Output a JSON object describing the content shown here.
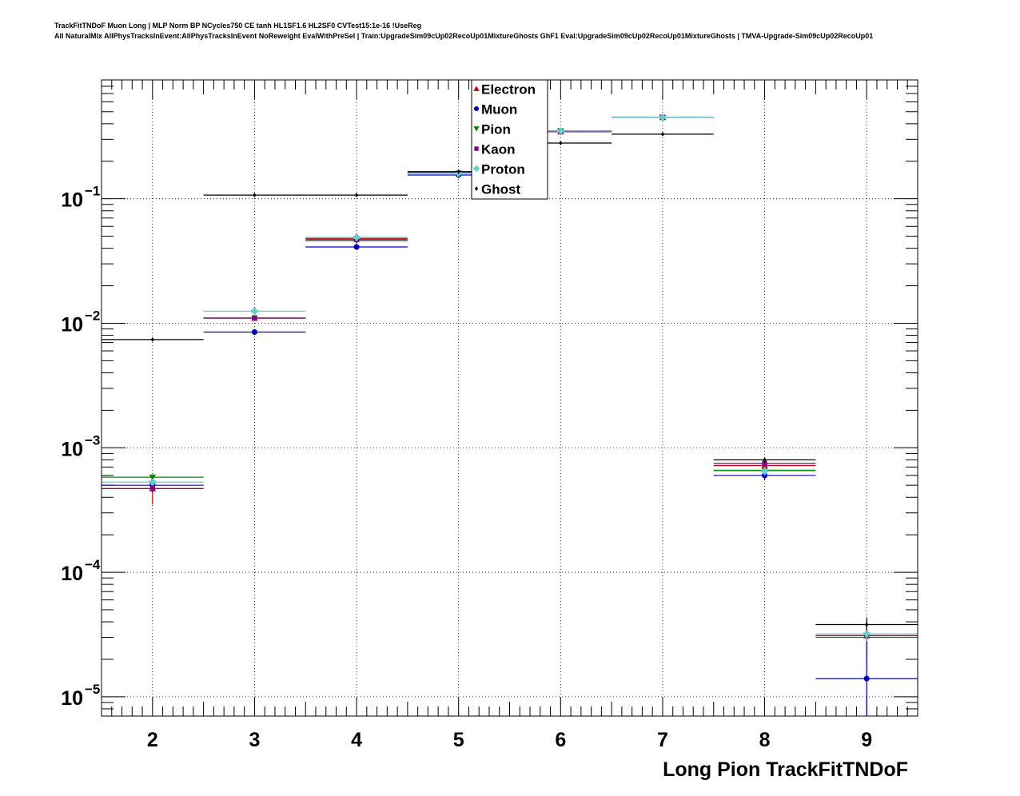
{
  "title_line1": "TrackFitTNDoF Muon Long | MLP Norm BP NCycles750 CE tanh HL1SF1.6 HL2SF0 CVTest15:1e-16 !UseReg",
  "title_line2": "All NaturalMix AllPhysTracksInEvent:AllPhysTracksInEvent NoReweight EvalWithPreSel | Train:UpgradeSim09cUp02RecoUp01MixtureGhosts GhF1 Eval:UpgradeSim09cUp02RecoUp01MixtureGhosts | TMVA-Upgrade-Sim09cUp02RecoUp01",
  "chart_data": {
    "type": "scatter",
    "xlabel": "Long Pion TrackFitTNDoF",
    "ylabel": "",
    "xlim": [
      1.5,
      9.5
    ],
    "ylim": [
      7e-06,
      0.9
    ],
    "yscale": "log",
    "grid": true,
    "legend_position": "top-center",
    "x_ticks": [
      "2",
      "3",
      "4",
      "5",
      "6",
      "7",
      "8",
      "9"
    ],
    "y_ticks": [
      {
        "value": 1e-05,
        "base": "10",
        "exp": "−5"
      },
      {
        "value": 0.0001,
        "base": "10",
        "exp": "−4"
      },
      {
        "value": 0.001,
        "base": "10",
        "exp": "−3"
      },
      {
        "value": 0.01,
        "base": "10",
        "exp": "−2"
      },
      {
        "value": 0.1,
        "base": "10",
        "exp": "−1"
      }
    ],
    "x": [
      2,
      3,
      4,
      5,
      6,
      7,
      8,
      9
    ],
    "series": [
      {
        "name": "Electron",
        "color": "#cc0000",
        "marker": "triangle-up",
        "values": [
          0.00047,
          0.011,
          0.048,
          0.162,
          0.345,
          0.45,
          0.00072,
          3.1e-05
        ],
        "err_low": [
          0.00012,
          0.0005,
          0.0015,
          0.003,
          0.004,
          0.005,
          8e-05,
          1.2e-05
        ],
        "err_high": [
          0.00011,
          0.0005,
          0.0015,
          0.003,
          0.004,
          0.005,
          8e-05,
          1.2e-05
        ]
      },
      {
        "name": "Muon",
        "color": "#0000cc",
        "marker": "circle",
        "values": [
          0.0005,
          0.0085,
          0.041,
          0.155,
          0.35,
          0.45,
          0.0006,
          1.4e-05
        ],
        "err_low": [
          4e-05,
          0.0003,
          0.001,
          0.002,
          0.003,
          0.004,
          5e-05,
          7e-06
        ],
        "err_high": [
          4e-05,
          0.0003,
          0.001,
          0.002,
          0.003,
          0.004,
          5e-05,
          1.4e-05
        ]
      },
      {
        "name": "Pion",
        "color": "#008800",
        "marker": "triangle-down",
        "values": [
          0.00058,
          0.011,
          0.046,
          0.16,
          0.35,
          0.45,
          0.00066,
          3e-05
        ],
        "err_low": [
          2e-05,
          0.0002,
          0.0005,
          0.001,
          0.002,
          0.002,
          2e-05,
          2e-06
        ],
        "err_high": [
          2e-05,
          0.0002,
          0.0005,
          0.001,
          0.002,
          0.002,
          2e-05,
          2e-06
        ]
      },
      {
        "name": "Kaon",
        "color": "#880088",
        "marker": "square",
        "values": [
          0.00047,
          0.011,
          0.047,
          0.161,
          0.348,
          0.45,
          0.00075,
          3.1e-05
        ],
        "err_low": [
          3e-05,
          0.0003,
          0.001,
          0.002,
          0.003,
          0.004,
          5e-05,
          4e-06
        ],
        "err_high": [
          3e-05,
          0.0003,
          0.001,
          0.002,
          0.003,
          0.004,
          5e-05,
          4e-06
        ]
      },
      {
        "name": "Proton",
        "color": "#66cccc",
        "marker": "plus",
        "values": [
          0.00053,
          0.0125,
          0.049,
          0.16,
          0.35,
          0.45,
          0.00065,
          3.2e-05
        ],
        "err_low": [
          3e-05,
          0.0004,
          0.001,
          0.002,
          0.003,
          0.004,
          5e-05,
          4e-06
        ],
        "err_high": [
          3e-05,
          0.0004,
          0.001,
          0.002,
          0.003,
          0.004,
          5e-05,
          4e-06
        ]
      },
      {
        "name": "Ghost",
        "color": "#000000",
        "marker": "diamond",
        "values": [
          0.0074,
          0.107,
          0.107,
          0.165,
          0.28,
          0.33,
          0.0008,
          3.8e-05
        ],
        "err_low": [
          0.0002,
          0.001,
          0.001,
          0.0015,
          0.002,
          0.002,
          4e-05,
          4e-06
        ],
        "err_high": [
          0.0002,
          0.001,
          0.001,
          0.0015,
          0.002,
          0.002,
          4e-05,
          4e-06
        ]
      }
    ]
  }
}
